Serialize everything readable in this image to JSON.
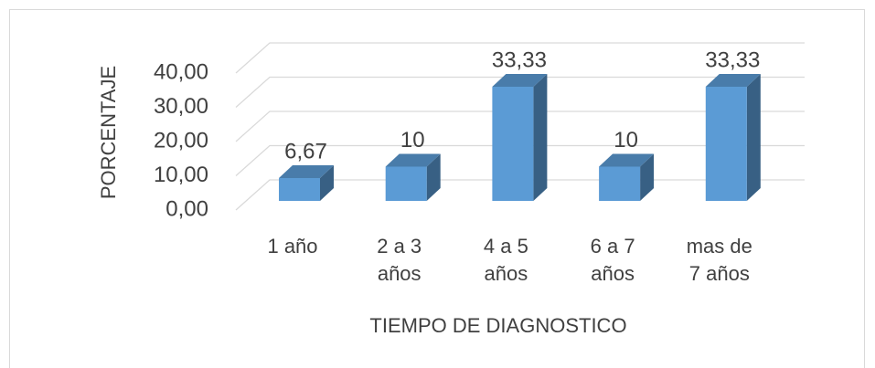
{
  "chart_data": {
    "type": "bar3d",
    "categories": [
      "1 año",
      "2 a 3 años",
      "4 a 5 años",
      "6 a 7 años",
      "mas de 7 años"
    ],
    "values": [
      6.67,
      10,
      33.33,
      10,
      33.33
    ],
    "value_labels": [
      "6,67",
      "10",
      "33,33",
      "10",
      "33,33"
    ],
    "color": "#5b9bd5",
    "ylim": [
      0,
      40
    ],
    "yticks": [
      {
        "value": 0,
        "label": "0,00"
      },
      {
        "value": 10,
        "label": "10,00"
      },
      {
        "value": 20,
        "label": "20,00"
      },
      {
        "value": 30,
        "label": "30,00"
      },
      {
        "value": 40,
        "label": "40,00"
      }
    ],
    "grid": true,
    "x_label": "TIEMPO DE DIAGNOSTICO",
    "y_label": "PORCENTAJE"
  }
}
